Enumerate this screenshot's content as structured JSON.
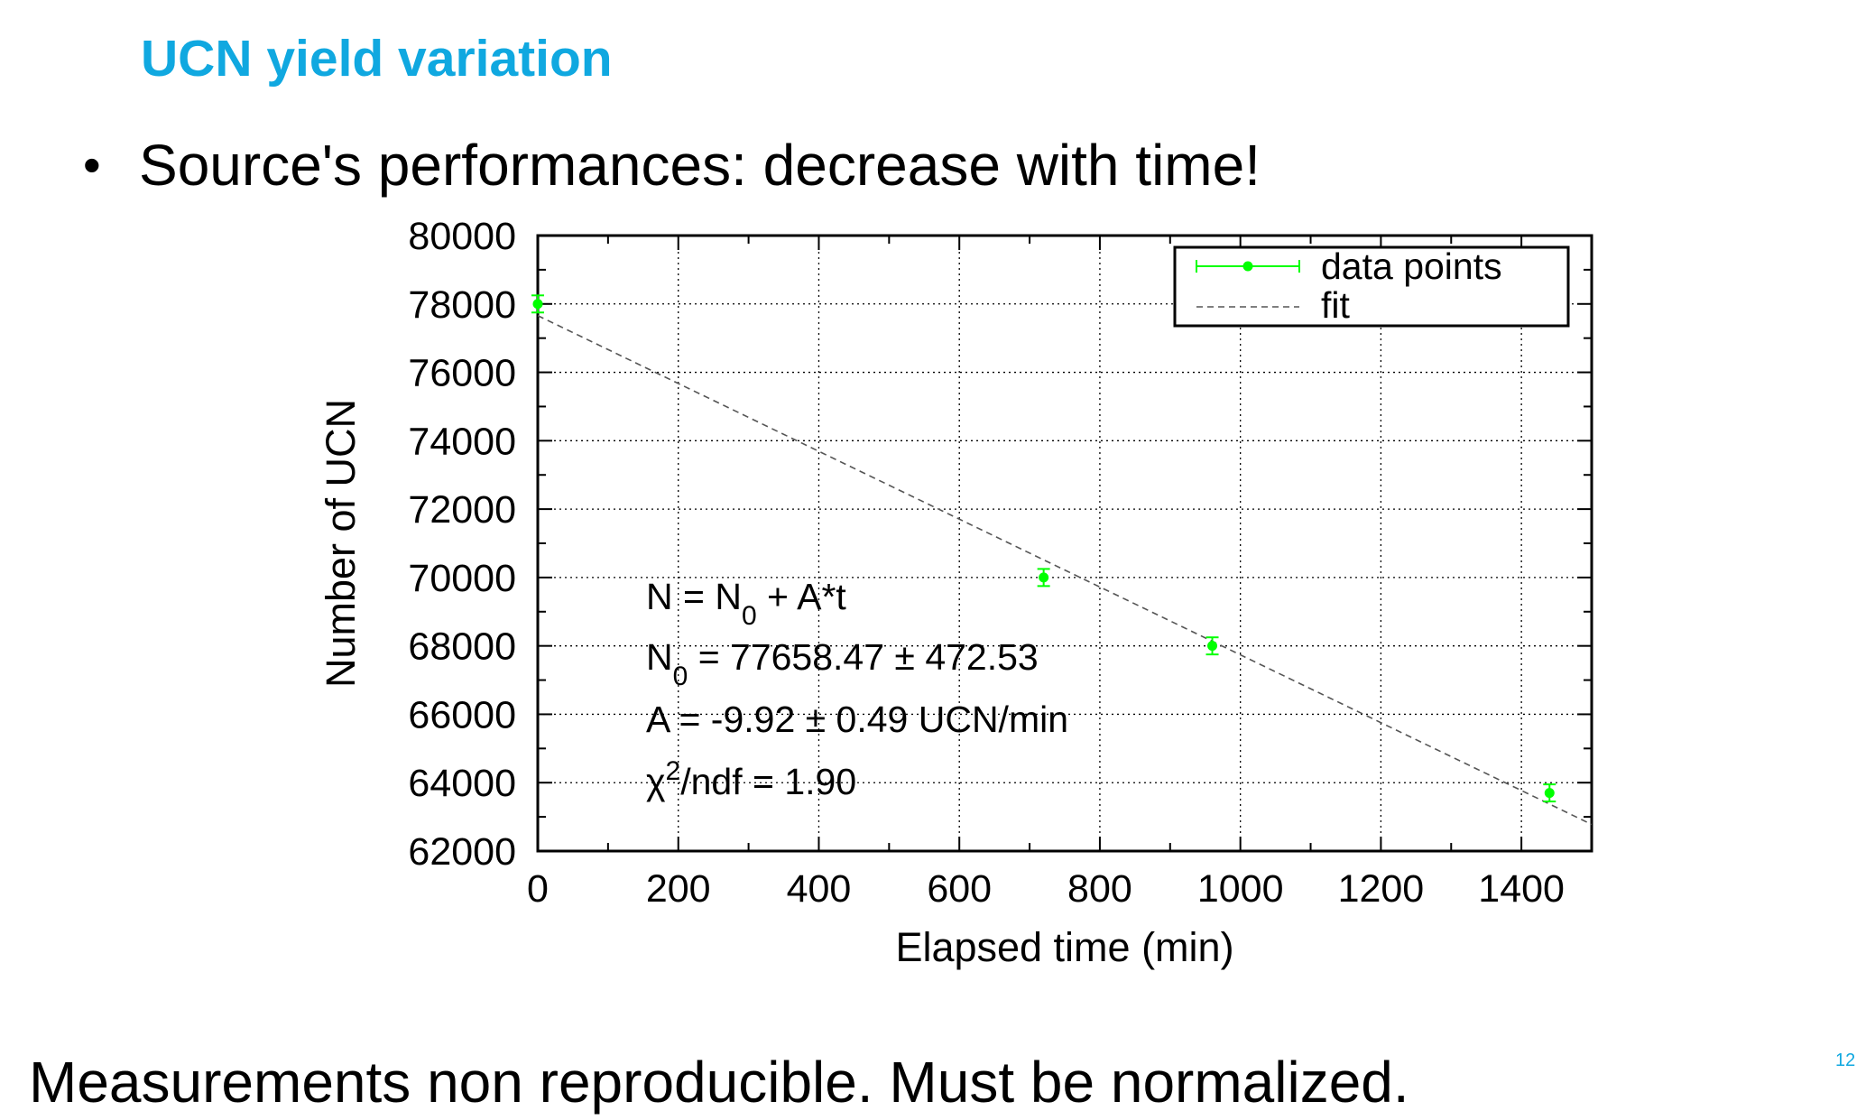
{
  "slide": {
    "title": "UCN yield variation",
    "bullet": "Source's performances: decrease with time!",
    "footer": "Measurements non reproducible. Must be normalized.",
    "page_number": "12",
    "accent_color": "#10a8e0"
  },
  "chart_data": {
    "type": "scatter",
    "title": "",
    "xlabel": "Elapsed time  (min)",
    "ylabel": "Number of UCN",
    "xlim": [
      0,
      1500
    ],
    "ylim": [
      62000,
      80000
    ],
    "xticks": [
      0,
      200,
      400,
      600,
      800,
      1000,
      1200,
      1400
    ],
    "yticks": [
      62000,
      64000,
      66000,
      68000,
      70000,
      72000,
      74000,
      76000,
      78000,
      80000
    ],
    "grid": true,
    "legend_position": "top-right",
    "series": [
      {
        "name": "data points",
        "color": "#00ff00",
        "x": [
          0,
          720,
          960,
          1440
        ],
        "y": [
          78000,
          70000,
          68000,
          63700
        ],
        "yerr": [
          250,
          250,
          250,
          250
        ]
      },
      {
        "name": "fit",
        "style": "dashed",
        "color": "#555555",
        "x": [
          0,
          1500
        ],
        "y": [
          77658.47,
          62778.47
        ]
      }
    ],
    "fit": {
      "N0": 77658.47,
      "A": -9.92
    },
    "annotations": [
      {
        "type": "formula"
      },
      {
        "type": "n0",
        "lhs": "N",
        "sub": "0",
        "text": " = 77658.47 ± 472.53"
      },
      {
        "type": "a",
        "text": "A =  -9.92 ± 0.49 UCN/min"
      },
      {
        "type": "chi2",
        "chi": "χ",
        "sup": "2",
        "text": "/ndf =   1.90"
      }
    ]
  }
}
